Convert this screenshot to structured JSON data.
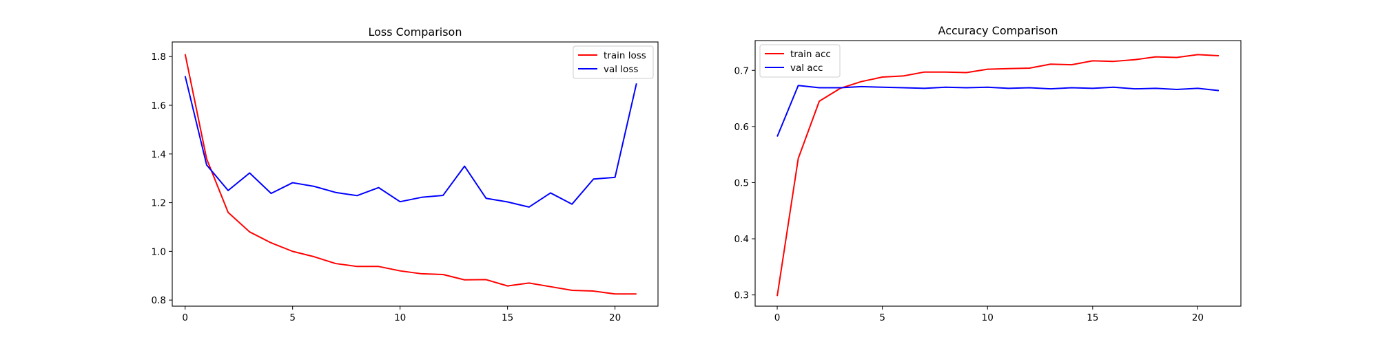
{
  "colors": {
    "train": "#ff0000",
    "val": "#0000ff"
  },
  "chart_data": [
    {
      "type": "line",
      "title": "Loss Comparison",
      "xlabel": "",
      "ylabel": "",
      "x": [
        0,
        1,
        2,
        3,
        4,
        5,
        6,
        7,
        8,
        9,
        10,
        11,
        12,
        13,
        14,
        15,
        16,
        17,
        18,
        19,
        20,
        21
      ],
      "xlim": [
        -0.6,
        22.0
      ],
      "ylim": [
        0.775,
        1.86
      ],
      "xticks": [
        0,
        5,
        10,
        15,
        20
      ],
      "xtick_labels": [
        "0",
        "5",
        "10",
        "15",
        "20"
      ],
      "yticks": [
        0.8,
        1.0,
        1.2,
        1.4,
        1.6,
        1.8
      ],
      "ytick_labels": [
        "0.8",
        "1.0",
        "1.2",
        "1.4",
        "1.6",
        "1.8"
      ],
      "legend_position": "upper right",
      "grid": false,
      "series": [
        {
          "name": "train loss",
          "color": "#ff0000",
          "values": [
            1.81,
            1.38,
            1.16,
            1.08,
            1.035,
            1.0,
            0.978,
            0.95,
            0.938,
            0.938,
            0.92,
            0.908,
            0.905,
            0.883,
            0.884,
            0.858,
            0.87,
            0.855,
            0.84,
            0.837,
            0.825,
            0.825
          ]
        },
        {
          "name": "val loss",
          "color": "#0000ff",
          "values": [
            1.72,
            1.355,
            1.25,
            1.322,
            1.238,
            1.282,
            1.267,
            1.242,
            1.229,
            1.262,
            1.204,
            1.222,
            1.23,
            1.35,
            1.218,
            1.203,
            1.182,
            1.24,
            1.194,
            1.297,
            1.304,
            1.69
          ]
        }
      ]
    },
    {
      "type": "line",
      "title": "Accuracy Comparison",
      "xlabel": "",
      "ylabel": "",
      "x": [
        0,
        1,
        2,
        3,
        4,
        5,
        6,
        7,
        8,
        9,
        10,
        11,
        12,
        13,
        14,
        15,
        16,
        17,
        18,
        19,
        20,
        21
      ],
      "xlim": [
        -1.05,
        22.05
      ],
      "ylim": [
        0.28,
        0.753
      ],
      "xticks": [
        0,
        5,
        10,
        15,
        20
      ],
      "xtick_labels": [
        "0",
        "5",
        "10",
        "15",
        "20"
      ],
      "yticks": [
        0.3,
        0.4,
        0.5,
        0.6,
        0.7
      ],
      "ytick_labels": [
        "0.3",
        "0.4",
        "0.5",
        "0.6",
        "0.7"
      ],
      "legend_position": "upper left",
      "grid": false,
      "series": [
        {
          "name": "train acc",
          "color": "#ff0000",
          "values": [
            0.298,
            0.543,
            0.645,
            0.668,
            0.68,
            0.688,
            0.69,
            0.697,
            0.697,
            0.696,
            0.702,
            0.703,
            0.704,
            0.711,
            0.71,
            0.717,
            0.716,
            0.719,
            0.724,
            0.723,
            0.728,
            0.726
          ]
        },
        {
          "name": "val acc",
          "color": "#0000ff",
          "values": [
            0.582,
            0.673,
            0.669,
            0.669,
            0.671,
            0.67,
            0.669,
            0.668,
            0.67,
            0.669,
            0.67,
            0.668,
            0.669,
            0.667,
            0.669,
            0.668,
            0.67,
            0.667,
            0.668,
            0.666,
            0.668,
            0.664
          ]
        }
      ]
    }
  ]
}
